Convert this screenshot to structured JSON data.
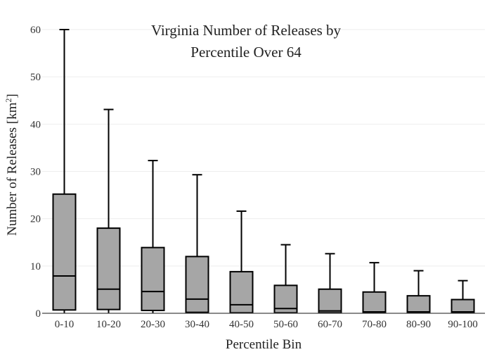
{
  "chart_data": {
    "type": "box",
    "title_lines": [
      "Virginia Number of Releases by",
      "Percentile Over 64"
    ],
    "xlabel": "Percentile Bin",
    "ylabel": "Number of Releases  [km",
    "ylabel_sup": "2",
    "ylabel_end": "]",
    "ylim": [
      0,
      60
    ],
    "yticks": [
      "0",
      "10",
      "20",
      "30",
      "40",
      "50",
      "60"
    ],
    "grid": true,
    "categories": [
      "0-10",
      "10-20",
      "20-30",
      "30-40",
      "40-50",
      "50-60",
      "60-70",
      "70-80",
      "80-90",
      "90-100"
    ],
    "boxes": [
      {
        "min": 0,
        "q1": 0.7,
        "median": 7.9,
        "q3": 25.2,
        "max": 60.0
      },
      {
        "min": 0,
        "q1": 0.8,
        "median": 5.1,
        "q3": 18.0,
        "max": 43.1
      },
      {
        "min": 0,
        "q1": 0.6,
        "median": 4.6,
        "q3": 13.9,
        "max": 32.3
      },
      {
        "min": 0,
        "q1": 0.2,
        "median": 3.0,
        "q3": 12.0,
        "max": 29.3
      },
      {
        "min": 0,
        "q1": 0.1,
        "median": 1.8,
        "q3": 8.8,
        "max": 21.6
      },
      {
        "min": 0,
        "q1": 0.1,
        "median": 1.0,
        "q3": 5.9,
        "max": 14.5
      },
      {
        "min": 0,
        "q1": 0.1,
        "median": 0.5,
        "q3": 5.1,
        "max": 12.6
      },
      {
        "min": 0,
        "q1": 0.1,
        "median": 0.3,
        "q3": 4.5,
        "max": 10.7
      },
      {
        "min": 0,
        "q1": 0.1,
        "median": 0.3,
        "q3": 3.7,
        "max": 9.0
      },
      {
        "min": 0,
        "q1": 0.1,
        "median": 0.3,
        "q3": 2.9,
        "max": 6.9
      }
    ],
    "colors": {
      "box_fill": "#a6a6a6",
      "box_stroke": "#000000",
      "grid": "#eeeeee"
    }
  }
}
